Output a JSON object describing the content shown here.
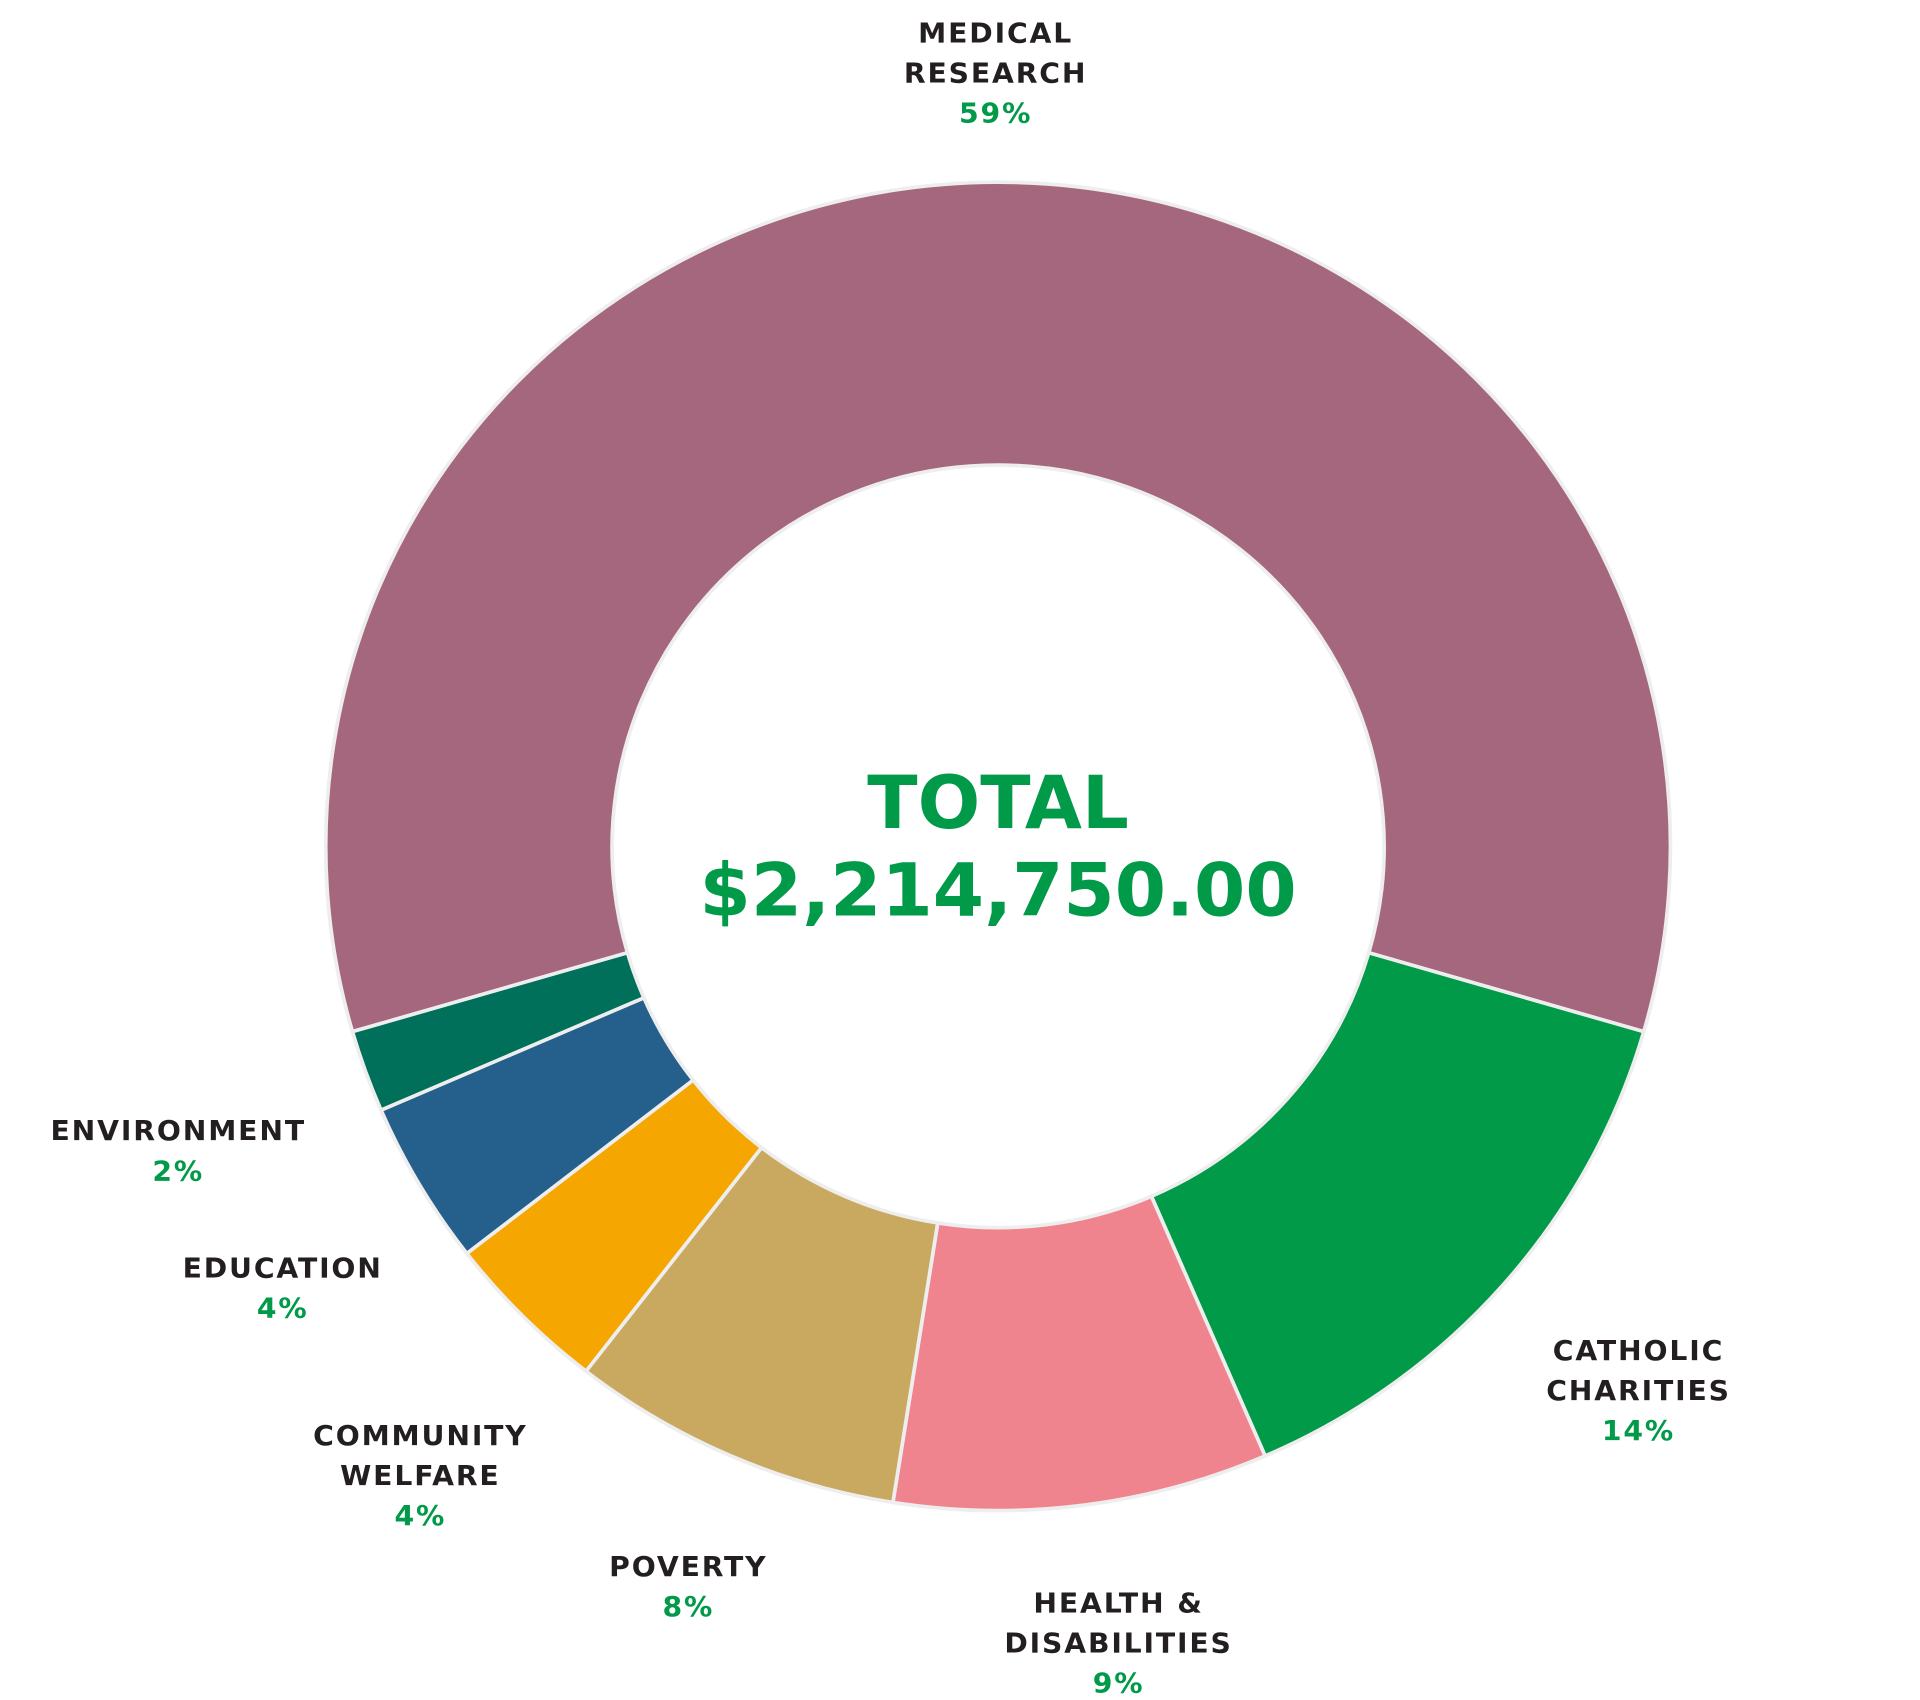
{
  "chart_data": {
    "type": "pie",
    "variant": "donut",
    "center_label": {
      "title": "TOTAL",
      "value": "$2,214,750.00"
    },
    "slices": [
      {
        "label_lines": [
          "MEDICAL",
          "RESEARCH"
        ],
        "percent_label": "59%",
        "value": 59,
        "color": "#a5677d"
      },
      {
        "label_lines": [
          "CATHOLIC",
          "CHARITIES"
        ],
        "percent_label": "14%",
        "value": 14,
        "color": "#009a48"
      },
      {
        "label_lines": [
          "HEALTH &",
          "DISABILITIES"
        ],
        "percent_label": "9%",
        "value": 9,
        "color": "#f0848e"
      },
      {
        "label_lines": [
          "POVERTY"
        ],
        "percent_label": "8%",
        "value": 8,
        "color": "#c9a860"
      },
      {
        "label_lines": [
          "COMMUNITY",
          "WELFARE"
        ],
        "percent_label": "4%",
        "value": 4,
        "color": "#f5a600"
      },
      {
        "label_lines": [
          "EDUCATION"
        ],
        "percent_label": "4%",
        "value": 4,
        "color": "#255f8b"
      },
      {
        "label_lines": [
          "ENVIRONMENT"
        ],
        "percent_label": "2%",
        "value": 2,
        "color": "#00705a"
      }
    ],
    "label_color": "#231f20",
    "accent_color": "#009a48",
    "legend": "none"
  }
}
